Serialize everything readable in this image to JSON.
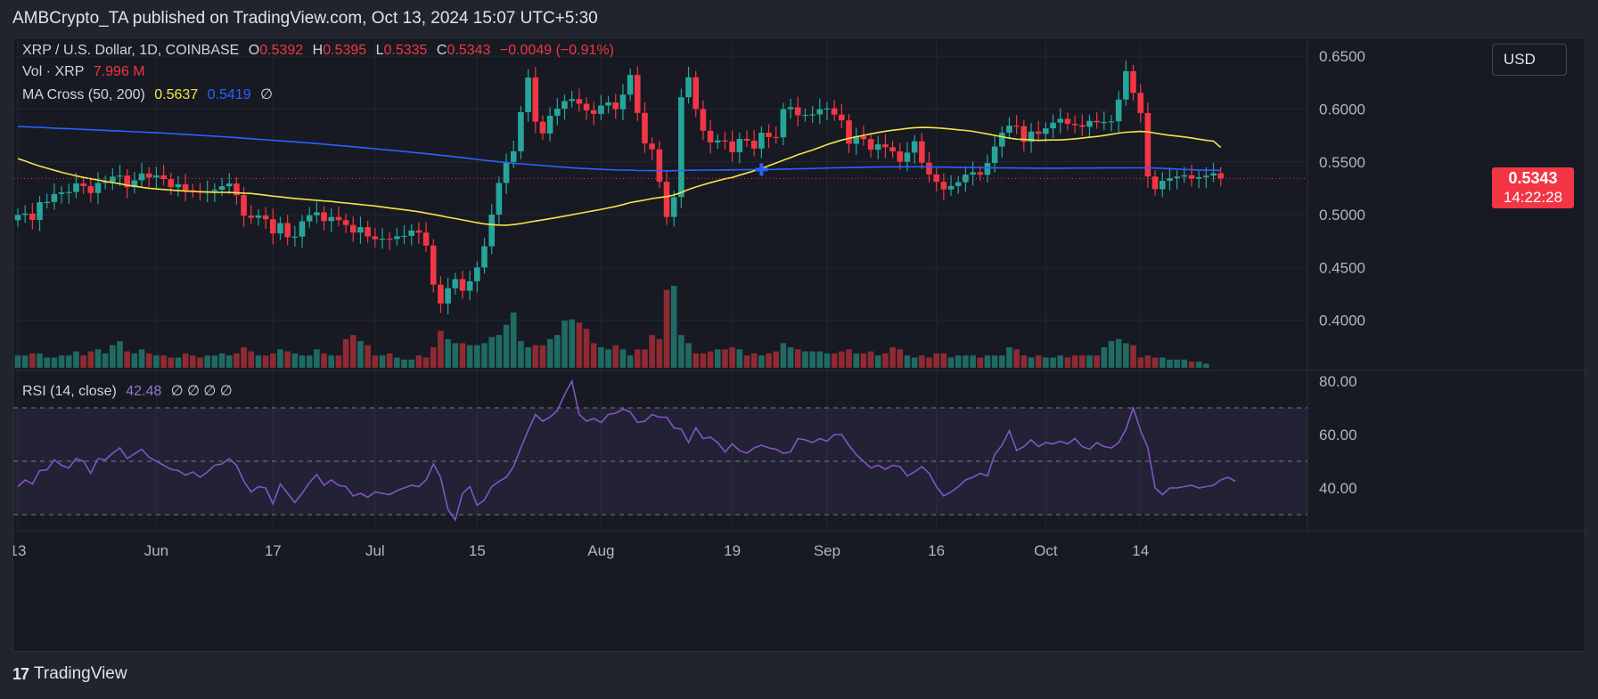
{
  "header": {
    "text": "AMBCrypto_TA published on TradingView.com, Oct 13, 2024 15:07 UTC+5:30"
  },
  "legend": {
    "symbol": "XRP / U.S. Dollar, 1D, COINBASE",
    "o_label": "O",
    "o_val": "0.5392",
    "h_label": "H",
    "h_val": "0.5395",
    "l_label": "L",
    "l_val": "0.5335",
    "c_label": "C",
    "c_val": "0.5343",
    "change": "−0.0049 (−0.91%)",
    "vol_label": "Vol · XRP",
    "vol_val": "7.996 M",
    "ma_label": "MA Cross (50, 200)",
    "ma50_val": "0.5637",
    "ma200_val": "0.5419",
    "ma_extra": "∅",
    "rsi_label": "RSI (14, close)",
    "rsi_val": "42.48",
    "rsi_extra": "∅ ∅ ∅ ∅"
  },
  "currency_button": "USD",
  "price_tag": {
    "price": "0.5343",
    "countdown": "14:22:28"
  },
  "brand": {
    "logo": "17",
    "name": "TradingView"
  },
  "colors": {
    "up": "#26a69a",
    "down": "#f23645",
    "ma50": "#f7e34a",
    "ma200": "#2962ff",
    "rsi": "#7e57c2",
    "bg": "#171a22"
  },
  "chart_data": [
    {
      "type": "candlestick",
      "title": "XRP / U.S. Dollar, 1D, COINBASE",
      "x_ticks": [
        {
          "label": "13",
          "date": "2024-05-13"
        },
        {
          "label": "Jun",
          "date": "2024-06-01"
        },
        {
          "label": "17",
          "date": "2024-06-17"
        },
        {
          "label": "Jul",
          "date": "2024-07-01"
        },
        {
          "label": "15",
          "date": "2024-07-15"
        },
        {
          "label": "Aug",
          "date": "2024-08-01"
        },
        {
          "label": "19",
          "date": "2024-08-19"
        },
        {
          "label": "Sep",
          "date": "2024-09-01"
        },
        {
          "label": "16",
          "date": "2024-09-16"
        },
        {
          "label": "Oct",
          "date": "2024-10-01"
        },
        {
          "label": "14",
          "date": "2024-10-14"
        }
      ],
      "y_ticks": [
        "0.4000",
        "0.4500",
        "0.5000",
        "0.5500",
        "0.6000",
        "0.6500"
      ],
      "ylim": [
        0.355,
        0.667
      ],
      "start_date": "2024-05-13",
      "close": [
        0.4997,
        0.501,
        0.495,
        0.5118,
        0.512,
        0.5195,
        0.521,
        0.5215,
        0.5295,
        0.527,
        0.5205,
        0.53,
        0.531,
        0.536,
        0.537,
        0.526,
        0.5325,
        0.539,
        0.5351,
        0.5372,
        0.5337,
        0.526,
        0.5288,
        0.5231,
        0.522,
        0.5208,
        0.5223,
        0.5236,
        0.5269,
        0.5295,
        0.5185,
        0.499,
        0.497,
        0.4992,
        0.4956,
        0.4822,
        0.492,
        0.4787,
        0.4792,
        0.4937,
        0.4994,
        0.5022,
        0.4939,
        0.4978,
        0.4948,
        0.4902,
        0.483,
        0.4882,
        0.4794,
        0.4767,
        0.4772,
        0.4769,
        0.4795,
        0.4799,
        0.485,
        0.483,
        0.4707,
        0.4337,
        0.4159,
        0.4303,
        0.4389,
        0.428,
        0.4369,
        0.45,
        0.47,
        0.5,
        0.53,
        0.55,
        0.56,
        0.597,
        0.6298,
        0.588,
        0.5769,
        0.5936,
        0.6004,
        0.6076,
        0.6094,
        0.605,
        0.5988,
        0.5954,
        0.6033,
        0.6063,
        0.5999,
        0.6137,
        0.6323,
        0.5963,
        0.5674,
        0.5619,
        0.5311,
        0.4978,
        0.5166,
        0.6112,
        0.6301,
        0.6,
        0.5794,
        0.5684,
        0.5703,
        0.5693,
        0.5591,
        0.5717,
        0.5701,
        0.5626,
        0.5776,
        0.5735,
        0.5732,
        0.5999,
        0.6017,
        0.594,
        0.5945,
        0.5949,
        0.5999,
        0.6006,
        0.5947,
        0.5893,
        0.5671,
        0.5743,
        0.5715,
        0.5615,
        0.5665,
        0.5638,
        0.5599,
        0.5501,
        0.5587,
        0.5695,
        0.5492,
        0.5381,
        0.5311,
        0.5239,
        0.5271,
        0.5307,
        0.5379,
        0.5401,
        0.5378,
        0.5489,
        0.5645,
        0.5776,
        0.5842,
        0.5838,
        0.569,
        0.5787,
        0.5765,
        0.5817,
        0.5871,
        0.5907,
        0.586,
        0.5848,
        0.5832,
        0.5888,
        0.5874,
        0.5877,
        0.5884,
        0.609,
        0.6358,
        0.6153,
        0.5962,
        0.5361,
        0.5241,
        0.532,
        0.5345,
        0.536,
        0.5373,
        0.5341,
        0.5355,
        0.5369,
        0.5392,
        0.5343
      ],
      "ma50": [
        0.553,
        0.5509,
        0.5482,
        0.546,
        0.544,
        0.542,
        0.5401,
        0.5384,
        0.5367,
        0.5353,
        0.534,
        0.5328,
        0.5315,
        0.5303,
        0.5293,
        0.5279,
        0.5269,
        0.5259,
        0.525,
        0.5243,
        0.5238,
        0.5233,
        0.5227,
        0.5223,
        0.522,
        0.5217,
        0.5214,
        0.5212,
        0.5211,
        0.521,
        0.5207,
        0.5204,
        0.52,
        0.5193,
        0.5184,
        0.5175,
        0.5168,
        0.516,
        0.5153,
        0.5147,
        0.5141,
        0.5136,
        0.5129,
        0.5125,
        0.5117,
        0.511,
        0.5103,
        0.5096,
        0.5089,
        0.5082,
        0.5073,
        0.5063,
        0.5054,
        0.5046,
        0.5037,
        0.5027,
        0.5015,
        0.5002,
        0.4989,
        0.4975,
        0.4963,
        0.495,
        0.4937,
        0.4924,
        0.4913,
        0.4906,
        0.4901,
        0.49,
        0.4906,
        0.4915,
        0.4928,
        0.494,
        0.4951,
        0.4962,
        0.4973,
        0.4986,
        0.4999,
        0.5012,
        0.5025,
        0.5037,
        0.505,
        0.5064,
        0.5078,
        0.5095,
        0.5114,
        0.5126,
        0.5139,
        0.5152,
        0.5162,
        0.5171,
        0.5186,
        0.521,
        0.5239,
        0.5262,
        0.5283,
        0.5302,
        0.5321,
        0.5339,
        0.5352,
        0.5374,
        0.5394,
        0.5414,
        0.5437,
        0.5463,
        0.5489,
        0.5516,
        0.554,
        0.5567,
        0.559,
        0.5612,
        0.5637,
        0.5663,
        0.5685,
        0.5706,
        0.5722,
        0.5737,
        0.5751,
        0.5764,
        0.5778,
        0.579,
        0.58,
        0.5807,
        0.5817,
        0.5823,
        0.5826,
        0.5825,
        0.5822,
        0.5817,
        0.5811,
        0.5803,
        0.5797,
        0.5789,
        0.5776,
        0.5764,
        0.5751,
        0.5737,
        0.5725,
        0.5715,
        0.5712,
        0.5707,
        0.5703,
        0.5706,
        0.5707,
        0.5707,
        0.5712,
        0.5718,
        0.5725,
        0.5733,
        0.574,
        0.5749,
        0.5761,
        0.5772,
        0.578,
        0.5784,
        0.5788,
        0.5784,
        0.5772,
        0.5761,
        0.5752,
        0.5744,
        0.5736,
        0.5726,
        0.5715,
        0.5704,
        0.5696,
        0.5637
      ],
      "ma200": [
        0.5835,
        0.5832,
        0.5829,
        0.5826,
        0.5823,
        0.5819,
        0.5816,
        0.5813,
        0.581,
        0.5807,
        0.5804,
        0.5801,
        0.5798,
        0.5795,
        0.5792,
        0.5789,
        0.5785,
        0.5782,
        0.5779,
        0.5775,
        0.5772,
        0.5768,
        0.5764,
        0.576,
        0.5756,
        0.5752,
        0.5747,
        0.5743,
        0.5738,
        0.5734,
        0.5729,
        0.5724,
        0.5719,
        0.5714,
        0.5709,
        0.5704,
        0.5699,
        0.5694,
        0.5689,
        0.5684,
        0.5678,
        0.5673,
        0.5667,
        0.5661,
        0.5655,
        0.5649,
        0.5643,
        0.5636,
        0.563,
        0.5624,
        0.5617,
        0.5611,
        0.5604,
        0.5598,
        0.5591,
        0.5584,
        0.5577,
        0.557,
        0.5562,
        0.5555,
        0.5547,
        0.5539,
        0.5531,
        0.5523,
        0.5515,
        0.5508,
        0.55,
        0.5493,
        0.5486,
        0.5481,
        0.5476,
        0.5471,
        0.5465,
        0.5459,
        0.5454,
        0.5449,
        0.5444,
        0.544,
        0.5436,
        0.5432,
        0.5429,
        0.5426,
        0.5424,
        0.5422,
        0.5421,
        0.5419,
        0.5418,
        0.5417,
        0.5416,
        0.5415,
        0.5416,
        0.5418,
        0.542,
        0.5421,
        0.5422,
        0.5422,
        0.5423,
        0.5424,
        0.5424,
        0.5425,
        0.5425,
        0.5426,
        0.5427,
        0.5428,
        0.5429,
        0.5431,
        0.5432,
        0.5434,
        0.5435,
        0.5437,
        0.5439,
        0.5441,
        0.5443,
        0.5445,
        0.5446,
        0.5448,
        0.5449,
        0.545,
        0.5451,
        0.5452,
        0.5452,
        0.5453,
        0.5453,
        0.5453,
        0.5453,
        0.5452,
        0.5451,
        0.545,
        0.5449,
        0.5448,
        0.5447,
        0.5446,
        0.5445,
        0.5444,
        0.5443,
        0.5443,
        0.5442,
        0.5441,
        0.5441,
        0.544,
        0.544,
        0.544,
        0.544,
        0.544,
        0.544,
        0.5441,
        0.5441,
        0.5441,
        0.5441,
        0.5442,
        0.5442,
        0.5442,
        0.5443,
        0.5443,
        0.5443,
        0.5442,
        0.5441,
        0.5438,
        0.5434,
        0.5431,
        0.5428,
        0.5425,
        0.5423,
        0.5421,
        0.542,
        0.5419
      ],
      "volume_relative": [
        0.3,
        0.3,
        0.35,
        0.35,
        0.25,
        0.25,
        0.3,
        0.3,
        0.4,
        0.3,
        0.4,
        0.45,
        0.35,
        0.55,
        0.65,
        0.4,
        0.35,
        0.45,
        0.35,
        0.3,
        0.3,
        0.25,
        0.25,
        0.35,
        0.3,
        0.25,
        0.3,
        0.3,
        0.35,
        0.3,
        0.35,
        0.5,
        0.4,
        0.3,
        0.3,
        0.35,
        0.45,
        0.4,
        0.35,
        0.3,
        0.3,
        0.45,
        0.35,
        0.3,
        0.3,
        0.7,
        0.8,
        0.65,
        0.55,
        0.3,
        0.3,
        0.35,
        0.25,
        0.2,
        0.2,
        0.3,
        0.25,
        0.5,
        0.9,
        0.7,
        0.6,
        0.6,
        0.55,
        0.55,
        0.6,
        0.75,
        0.8,
        1.05,
        1.35,
        0.65,
        0.5,
        0.55,
        0.55,
        0.7,
        0.8,
        1.15,
        1.18,
        1.1,
        0.95,
        0.6,
        0.5,
        0.45,
        0.55,
        0.45,
        0.3,
        0.45,
        0.45,
        0.8,
        0.7,
        1.9,
        2.0,
        0.8,
        0.6,
        0.35,
        0.35,
        0.4,
        0.45,
        0.45,
        0.5,
        0.45,
        0.3,
        0.35,
        0.3,
        0.35,
        0.4,
        0.6,
        0.5,
        0.45,
        0.4,
        0.4,
        0.4,
        0.35,
        0.35,
        0.4,
        0.45,
        0.35,
        0.35,
        0.4,
        0.3,
        0.35,
        0.5,
        0.45,
        0.3,
        0.25,
        0.3,
        0.25,
        0.35,
        0.35,
        0.25,
        0.3,
        0.3,
        0.3,
        0.25,
        0.3,
        0.3,
        0.3,
        0.5,
        0.45,
        0.3,
        0.25,
        0.3,
        0.25,
        0.25,
        0.3,
        0.25,
        0.3,
        0.3,
        0.3,
        0.3,
        0.5,
        0.65,
        0.7,
        0.6,
        0.55,
        0.25,
        0.3,
        0.25,
        0.25,
        0.2,
        0.2,
        0.2,
        0.15,
        0.15,
        0.1
      ]
    },
    {
      "type": "line",
      "title": "RSI (14, close)",
      "y_ticks": [
        "40.00",
        "60.00",
        "80.00"
      ],
      "ylim": [
        25,
        83
      ],
      "bands": [
        30,
        50,
        70
      ],
      "start_date": "2024-05-13",
      "values": [
        40.5,
        43.0,
        41.5,
        46.5,
        46.8,
        50.5,
        48.5,
        47.5,
        51.0,
        50.0,
        45.5,
        51.0,
        50.5,
        53.0,
        55.0,
        51.0,
        52.8,
        54.5,
        51.5,
        50.0,
        48.5,
        47.0,
        46.5,
        44.8,
        46.0,
        44.0,
        46.0,
        48.5,
        49.0,
        51.0,
        48.5,
        42.5,
        38.5,
        40.5,
        40.0,
        34.0,
        41.5,
        38.0,
        34.5,
        38.0,
        42.0,
        45.0,
        41.0,
        43.0,
        41.0,
        40.5,
        37.0,
        38.0,
        36.5,
        38.5,
        38.0,
        37.5,
        39.0,
        40.0,
        41.0,
        40.5,
        43.0,
        49.0,
        44.0,
        32.0,
        28.0,
        38.0,
        40.5,
        33.5,
        35.5,
        40.5,
        42.5,
        44.0,
        48.0,
        55.0,
        61.5,
        67.5,
        65.0,
        66.5,
        69.0,
        75.0,
        80.0,
        67.5,
        65.0,
        66.0,
        64.5,
        67.5,
        68.0,
        69.5,
        68.5,
        64.5,
        65.0,
        67.5,
        66.5,
        66.5,
        62.5,
        62.0,
        57.0,
        62.5,
        58.5,
        59.0,
        57.0,
        53.5,
        56.5,
        54.0,
        53.0,
        55.0,
        56.0,
        55.0,
        54.5,
        53.0,
        53.5,
        58.5,
        58.0,
        57.0,
        58.5,
        57.5,
        60.0,
        60.0,
        56.0,
        52.5,
        50.0,
        47.5,
        48.5,
        47.0,
        48.5,
        48.0,
        44.5,
        46.0,
        48.0,
        45.5,
        40.5,
        37.0,
        38.5,
        40.5,
        43.0,
        44.0,
        45.5,
        44.5,
        52.5,
        56.0,
        61.5,
        54.0,
        55.5,
        58.0,
        55.5,
        57.0,
        56.5,
        57.5,
        56.5,
        58.5,
        55.5,
        54.5,
        57.0,
        55.5,
        55.0,
        57.0,
        62.0,
        70.0,
        61.5,
        55.0,
        40.0,
        37.5,
        40.0,
        40.0,
        40.5,
        41.0,
        40.0,
        40.5,
        41.0,
        43.0,
        44.0,
        42.5
      ]
    }
  ]
}
